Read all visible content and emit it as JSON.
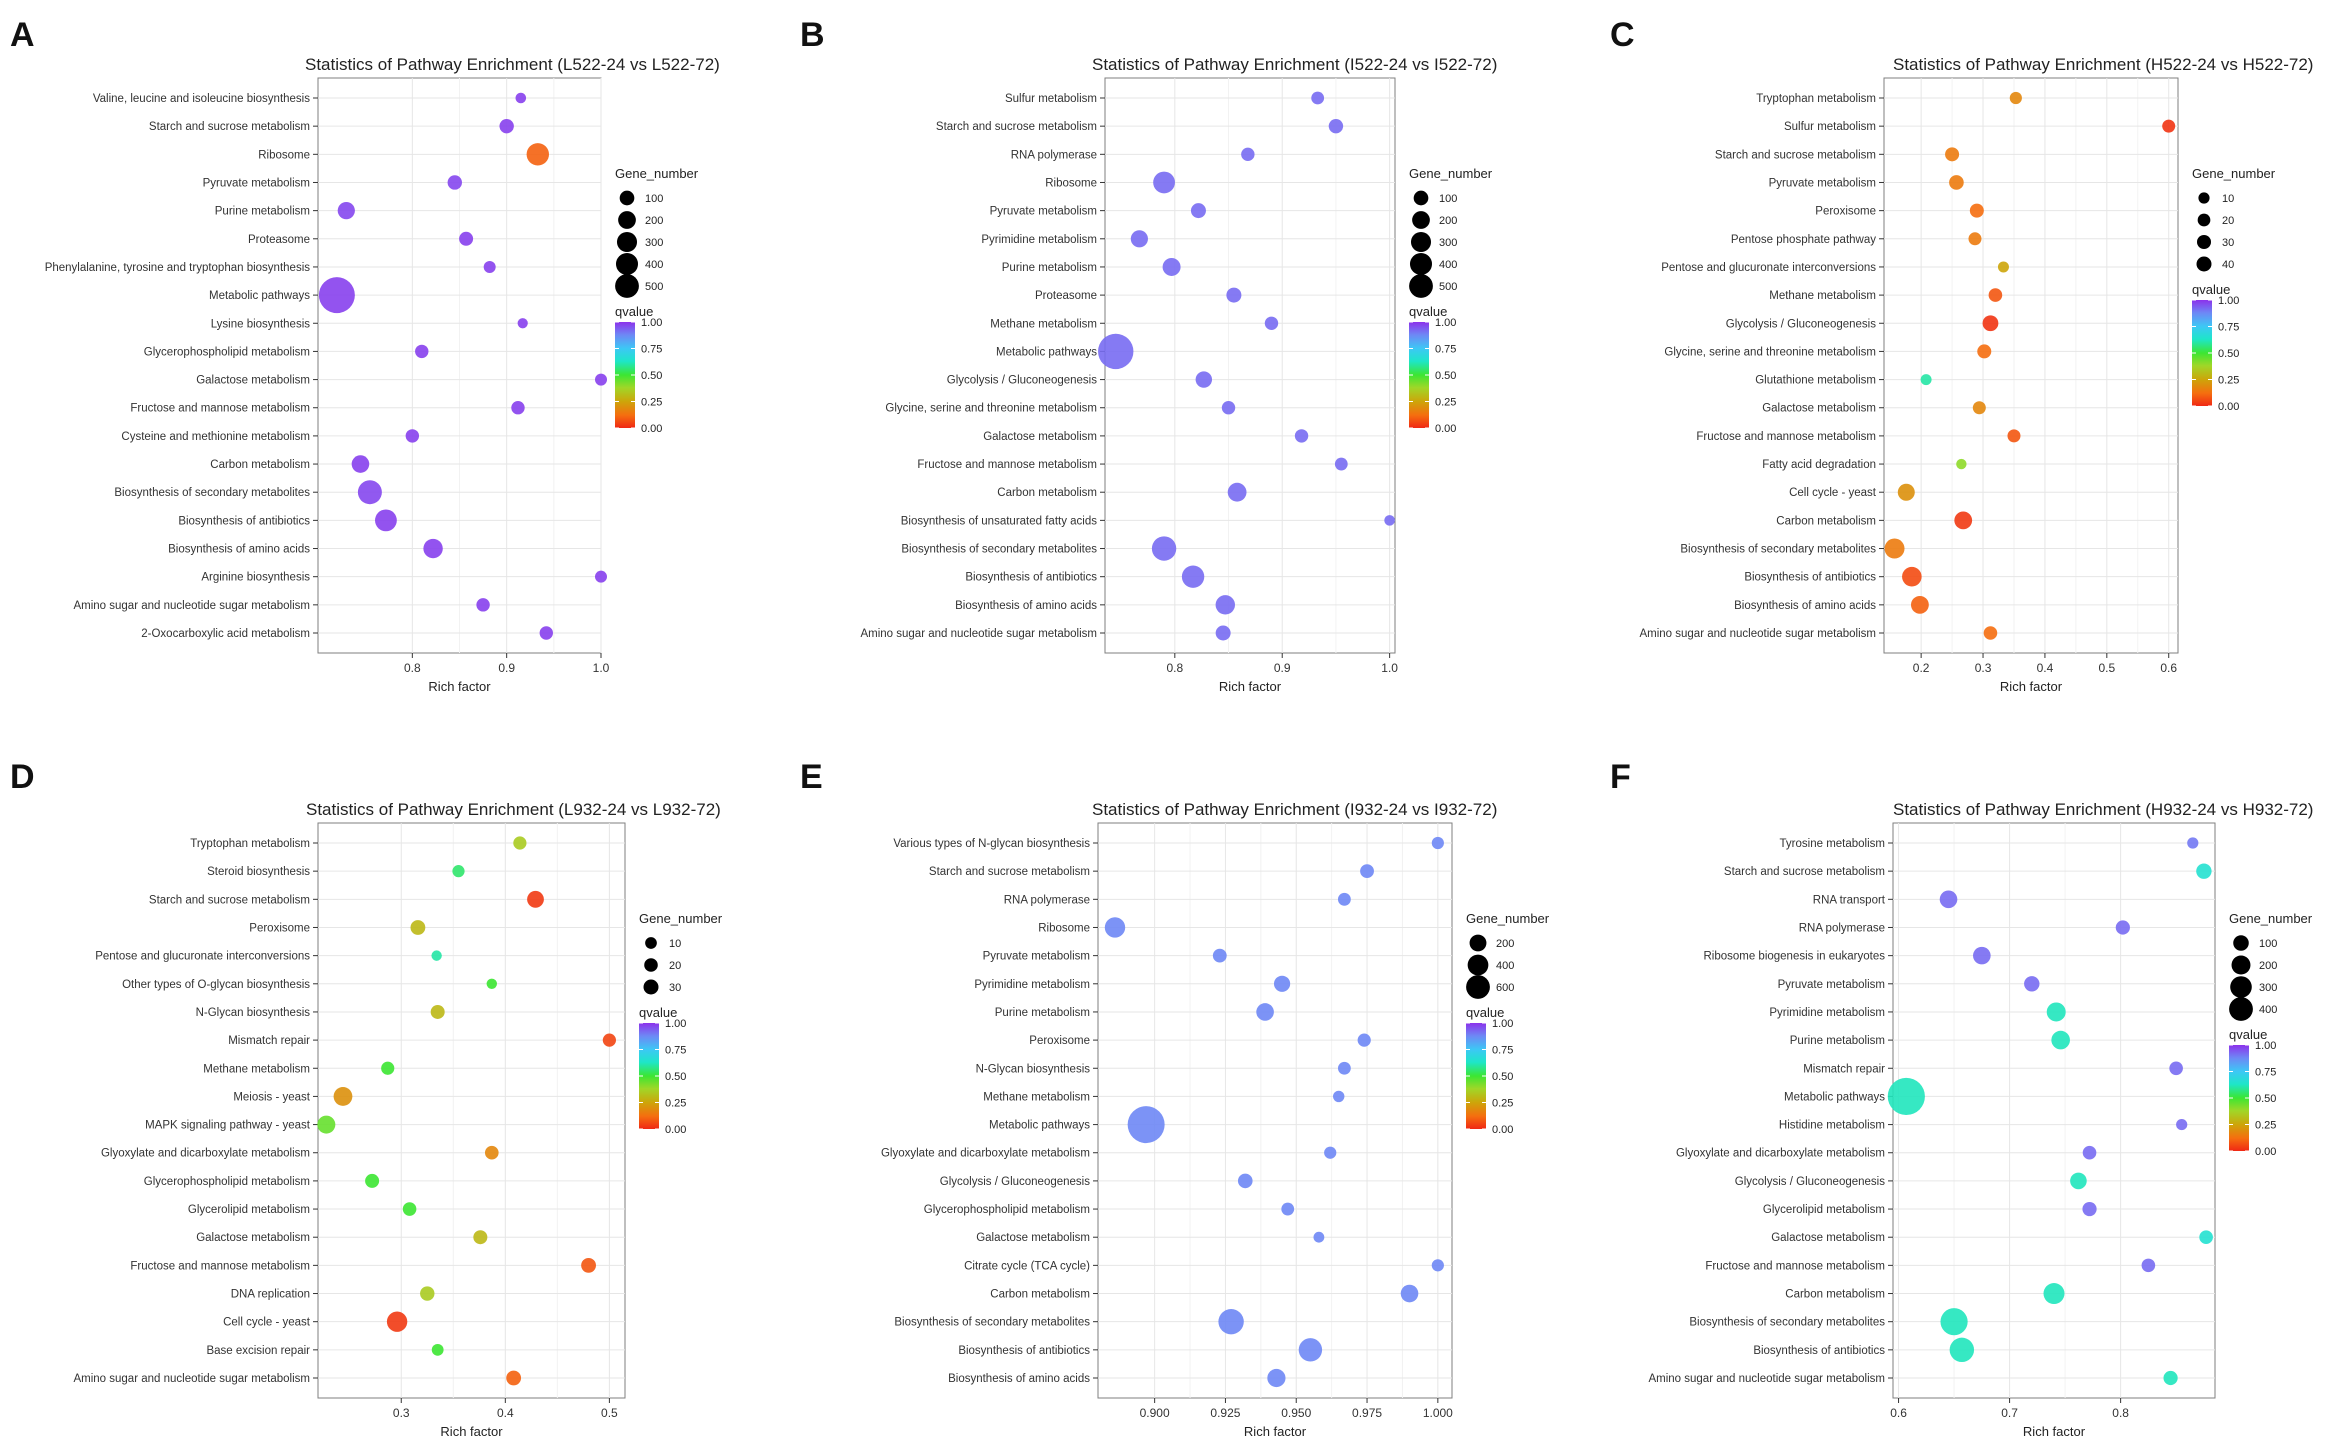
{
  "figure": {
    "legend_size_title": "Gene_number",
    "legend_color_title": "qvalue",
    "qvalue_ticks": [
      "1.00",
      "0.75",
      "0.50",
      "0.25",
      "0.00"
    ]
  },
  "chart_data": [
    {
      "type": "scatter",
      "panel": "A",
      "title": "Statistics of Pathway Enrichment (L522-24 vs L522-72)",
      "xlabel": "Rich factor",
      "ylabel": "",
      "xlim": [
        0.7,
        1.0
      ],
      "xticks": [
        0.8,
        0.9,
        1.0
      ],
      "xtick_labels": [
        "0.8",
        "0.9",
        "1.0"
      ],
      "size_legend": {
        "values": [
          100,
          200,
          300,
          400,
          500
        ],
        "labels": [
          "100",
          "200",
          "300",
          "400",
          "500"
        ]
      },
      "size_range": [
        3,
        18
      ],
      "categories": [
        "Valine, leucine and isoleucine biosynthesis",
        "Starch and sucrose metabolism",
        "Ribosome",
        "Pyruvate metabolism",
        "Purine metabolism",
        "Proteasome",
        "Phenylalanine, tyrosine and tryptophan biosynthesis",
        "Metabolic pathways",
        "Lysine biosynthesis",
        "Glycerophospholipid metabolism",
        "Galactose metabolism",
        "Fructose and mannose metabolism",
        "Cysteine and methionine metabolism",
        "Carbon metabolism",
        "Biosynthesis of secondary metabolites",
        "Biosynthesis of antibiotics",
        "Biosynthesis of amino acids",
        "Arginine biosynthesis",
        "Amino sugar and nucleotide sugar metabolism",
        "2-Oxocarboxylic acid metabolism"
      ],
      "points": [
        {
          "rich": 0.915,
          "genes": 12,
          "q": 0.98
        },
        {
          "rich": 0.9,
          "genes": 40,
          "q": 0.98
        },
        {
          "rich": 0.933,
          "genes": 150,
          "q": 0.1
        },
        {
          "rich": 0.845,
          "genes": 40,
          "q": 0.97
        },
        {
          "rich": 0.73,
          "genes": 70,
          "q": 0.97
        },
        {
          "rich": 0.857,
          "genes": 35,
          "q": 0.98
        },
        {
          "rich": 0.882,
          "genes": 20,
          "q": 0.98
        },
        {
          "rich": 0.72,
          "genes": 500,
          "q": 0.98
        },
        {
          "rich": 0.917,
          "genes": 10,
          "q": 0.98
        },
        {
          "rich": 0.81,
          "genes": 30,
          "q": 0.98
        },
        {
          "rich": 1.0,
          "genes": 20,
          "q": 0.98
        },
        {
          "rich": 0.912,
          "genes": 30,
          "q": 0.98
        },
        {
          "rich": 0.8,
          "genes": 30,
          "q": 0.98
        },
        {
          "rich": 0.745,
          "genes": 75,
          "q": 0.98
        },
        {
          "rich": 0.755,
          "genes": 180,
          "q": 0.97
        },
        {
          "rich": 0.772,
          "genes": 140,
          "q": 0.98
        },
        {
          "rich": 0.822,
          "genes": 100,
          "q": 0.98
        },
        {
          "rich": 1.0,
          "genes": 20,
          "q": 0.98
        },
        {
          "rich": 0.875,
          "genes": 30,
          "q": 0.98
        },
        {
          "rich": 0.942,
          "genes": 30,
          "q": 0.98
        }
      ]
    },
    {
      "type": "scatter",
      "panel": "B",
      "title": "Statistics of Pathway Enrichment (I522-24 vs I522-72)",
      "xlabel": "Rich factor",
      "ylabel": "",
      "xlim": [
        0.735,
        1.005
      ],
      "xticks": [
        0.8,
        0.9,
        1.0
      ],
      "xtick_labels": [
        "0.8",
        "0.9",
        "1.0"
      ],
      "size_legend": {
        "values": [
          100,
          200,
          300,
          400,
          500
        ],
        "labels": [
          "100",
          "200",
          "300",
          "400",
          "500"
        ]
      },
      "size_range": [
        3,
        18
      ],
      "categories": [
        "Sulfur metabolism",
        "Starch and sucrose metabolism",
        "RNA polymerase",
        "Ribosome",
        "Pyruvate metabolism",
        "Pyrimidine metabolism",
        "Purine metabolism",
        "Proteasome",
        "Methane metabolism",
        "Metabolic pathways",
        "Glycolysis / Gluconeogenesis",
        "Glycine, serine and threonine metabolism",
        "Galactose metabolism",
        "Fructose and mannose metabolism",
        "Carbon metabolism",
        "Biosynthesis of unsaturated fatty acids",
        "Biosynthesis of secondary metabolites",
        "Biosynthesis of antibiotics",
        "Biosynthesis of amino acids",
        "Amino sugar and nucleotide sugar metabolism"
      ],
      "points": [
        {
          "rich": 0.933,
          "genes": 25,
          "q": 0.92
        },
        {
          "rich": 0.95,
          "genes": 40,
          "q": 0.92
        },
        {
          "rich": 0.868,
          "genes": 30,
          "q": 0.92
        },
        {
          "rich": 0.79,
          "genes": 140,
          "q": 0.92
        },
        {
          "rich": 0.822,
          "genes": 45,
          "q": 0.92
        },
        {
          "rich": 0.767,
          "genes": 70,
          "q": 0.92
        },
        {
          "rich": 0.797,
          "genes": 80,
          "q": 0.92
        },
        {
          "rich": 0.855,
          "genes": 45,
          "q": 0.92
        },
        {
          "rich": 0.89,
          "genes": 30,
          "q": 0.92
        },
        {
          "rich": 0.745,
          "genes": 480,
          "q": 0.92
        },
        {
          "rich": 0.827,
          "genes": 60,
          "q": 0.92
        },
        {
          "rich": 0.85,
          "genes": 30,
          "q": 0.92
        },
        {
          "rich": 0.918,
          "genes": 30,
          "q": 0.92
        },
        {
          "rich": 0.955,
          "genes": 25,
          "q": 0.92
        },
        {
          "rich": 0.858,
          "genes": 90,
          "q": 0.92
        },
        {
          "rich": 1.0,
          "genes": 12,
          "q": 0.92
        },
        {
          "rich": 0.79,
          "genes": 190,
          "q": 0.92
        },
        {
          "rich": 0.817,
          "genes": 150,
          "q": 0.92
        },
        {
          "rich": 0.847,
          "genes": 100,
          "q": 0.92
        },
        {
          "rich": 0.845,
          "genes": 45,
          "q": 0.92
        }
      ]
    },
    {
      "type": "scatter",
      "panel": "C",
      "title": "Statistics of Pathway Enrichment (H522-24 vs H522-72)",
      "xlabel": "Rich factor",
      "ylabel": "",
      "xlim": [
        0.14,
        0.615
      ],
      "xticks": [
        0.2,
        0.3,
        0.4,
        0.5,
        0.6
      ],
      "xtick_labels": [
        "0.2",
        "0.3",
        "0.4",
        "0.5",
        "0.6"
      ],
      "size_legend": {
        "values": [
          10,
          20,
          30,
          40
        ],
        "labels": [
          "10",
          "20",
          "30",
          "40"
        ]
      },
      "size_range": [
        3,
        10
      ],
      "categories": [
        "Tryptophan metabolism",
        "Sulfur metabolism",
        "Starch and sucrose metabolism",
        "Pyruvate metabolism",
        "Peroxisome",
        "Pentose phosphate pathway",
        "Pentose and glucuronate interconversions",
        "Methane metabolism",
        "Glycolysis / Gluconeogenesis",
        "Glycine, serine and threonine metabolism",
        "Glutathione metabolism",
        "Galactose metabolism",
        "Fructose and mannose metabolism",
        "Fatty acid degradation",
        "Cell cycle - yeast",
        "Carbon metabolism",
        "Biosynthesis of secondary metabolites",
        "Biosynthesis of antibiotics",
        "Biosynthesis of amino acids",
        "Amino sugar and nucleotide sugar metabolism"
      ],
      "points": [
        {
          "rich": 0.353,
          "genes": 8,
          "q": 0.18
        },
        {
          "rich": 0.6,
          "genes": 10,
          "q": 0.02
        },
        {
          "rich": 0.25,
          "genes": 13,
          "q": 0.15
        },
        {
          "rich": 0.257,
          "genes": 15,
          "q": 0.15
        },
        {
          "rich": 0.29,
          "genes": 13,
          "q": 0.12
        },
        {
          "rich": 0.287,
          "genes": 10,
          "q": 0.15
        },
        {
          "rich": 0.333,
          "genes": 5,
          "q": 0.25
        },
        {
          "rich": 0.32,
          "genes": 12,
          "q": 0.08
        },
        {
          "rich": 0.312,
          "genes": 20,
          "q": 0.02
        },
        {
          "rich": 0.302,
          "genes": 13,
          "q": 0.12
        },
        {
          "rich": 0.208,
          "genes": 5,
          "q": 0.6
        },
        {
          "rich": 0.294,
          "genes": 10,
          "q": 0.18
        },
        {
          "rich": 0.35,
          "genes": 10,
          "q": 0.08
        },
        {
          "rich": 0.265,
          "genes": 4,
          "q": 0.4
        },
        {
          "rich": 0.176,
          "genes": 25,
          "q": 0.2
        },
        {
          "rich": 0.268,
          "genes": 28,
          "q": 0.03
        },
        {
          "rich": 0.157,
          "genes": 40,
          "q": 0.15
        },
        {
          "rich": 0.185,
          "genes": 38,
          "q": 0.06
        },
        {
          "rich": 0.198,
          "genes": 28,
          "q": 0.1
        },
        {
          "rich": 0.312,
          "genes": 12,
          "q": 0.12
        }
      ]
    },
    {
      "type": "scatter",
      "panel": "D",
      "title": "Statistics of Pathway Enrichment (L932-24 vs L932-72)",
      "xlabel": "Rich factor",
      "ylabel": "",
      "xlim": [
        0.22,
        0.515
      ],
      "xticks": [
        0.3,
        0.4,
        0.5
      ],
      "xtick_labels": [
        "0.3",
        "0.4",
        "0.5"
      ],
      "size_legend": {
        "values": [
          10,
          20,
          30
        ],
        "labels": [
          "10",
          "20",
          "30"
        ]
      },
      "size_range": [
        3,
        10
      ],
      "categories": [
        "Tryptophan metabolism",
        "Steroid biosynthesis",
        "Starch and sucrose metabolism",
        "Peroxisome",
        "Pentose and glucuronate interconversions",
        "Other types of O-glycan biosynthesis",
        "N-Glycan biosynthesis",
        "Mismatch repair",
        "Methane metabolism",
        "Meiosis - yeast",
        "MAPK signaling pathway - yeast",
        "Glyoxylate and dicarboxylate metabolism",
        "Glycerophospholipid metabolism",
        "Glycerolipid metabolism",
        "Galactose metabolism",
        "Fructose and mannose metabolism",
        "DNA replication",
        "Cell cycle - yeast",
        "Base excision repair",
        "Amino sugar and nucleotide sugar metabolism"
      ],
      "points": [
        {
          "rich": 0.414,
          "genes": 8,
          "q": 0.35
        },
        {
          "rich": 0.355,
          "genes": 6,
          "q": 0.55
        },
        {
          "rich": 0.429,
          "genes": 18,
          "q": 0.03
        },
        {
          "rich": 0.316,
          "genes": 12,
          "q": 0.3
        },
        {
          "rich": 0.334,
          "genes": 3,
          "q": 0.6
        },
        {
          "rich": 0.387,
          "genes": 3,
          "q": 0.5
        },
        {
          "rich": 0.335,
          "genes": 10,
          "q": 0.3
        },
        {
          "rich": 0.5,
          "genes": 8,
          "q": 0.05
        },
        {
          "rich": 0.287,
          "genes": 8,
          "q": 0.5
        },
        {
          "rich": 0.244,
          "genes": 25,
          "q": 0.2
        },
        {
          "rich": 0.228,
          "genes": 22,
          "q": 0.45
        },
        {
          "rich": 0.387,
          "genes": 9,
          "q": 0.18
        },
        {
          "rich": 0.272,
          "genes": 10,
          "q": 0.5
        },
        {
          "rich": 0.308,
          "genes": 9,
          "q": 0.5
        },
        {
          "rich": 0.376,
          "genes": 10,
          "q": 0.3
        },
        {
          "rich": 0.48,
          "genes": 12,
          "q": 0.08
        },
        {
          "rich": 0.325,
          "genes": 11,
          "q": 0.35
        },
        {
          "rich": 0.296,
          "genes": 32,
          "q": 0.03
        },
        {
          "rich": 0.335,
          "genes": 5,
          "q": 0.5
        },
        {
          "rich": 0.408,
          "genes": 12,
          "q": 0.1
        }
      ]
    },
    {
      "type": "scatter",
      "panel": "E",
      "title": "Statistics of Pathway Enrichment (I932-24 vs I932-72)",
      "xlabel": "Rich factor",
      "ylabel": "",
      "xlim": [
        0.88,
        1.005
      ],
      "xticks": [
        0.9,
        0.925,
        0.95,
        0.975,
        1.0
      ],
      "xtick_labels": [
        "0.900",
        "0.925",
        "0.950",
        "0.975",
        "1.000"
      ],
      "size_legend": {
        "values": [
          200,
          400,
          600
        ],
        "labels": [
          "200",
          "400",
          "600"
        ]
      },
      "size_range": [
        3,
        18
      ],
      "categories": [
        "Various types of N-glycan biosynthesis",
        "Starch and sucrose metabolism",
        "RNA polymerase",
        "Ribosome",
        "Pyruvate metabolism",
        "Pyrimidine metabolism",
        "Purine metabolism",
        "Peroxisome",
        "N-Glycan biosynthesis",
        "Methane metabolism",
        "Metabolic pathways",
        "Glyoxylate and dicarboxylate metabolism",
        "Glycolysis / Gluconeogenesis",
        "Glycerophospholipid metabolism",
        "Galactose metabolism",
        "Citrate cycle (TCA cycle)",
        "Carbon metabolism",
        "Biosynthesis of secondary metabolites",
        "Biosynthesis of antibiotics",
        "Biosynthesis of amino acids"
      ],
      "points": [
        {
          "rich": 1.0,
          "genes": 25,
          "q": 0.88
        },
        {
          "rich": 0.975,
          "genes": 40,
          "q": 0.88
        },
        {
          "rich": 0.967,
          "genes": 30,
          "q": 0.88
        },
        {
          "rich": 0.886,
          "genes": 140,
          "q": 0.88
        },
        {
          "rich": 0.923,
          "genes": 40,
          "q": 0.88
        },
        {
          "rich": 0.945,
          "genes": 70,
          "q": 0.88
        },
        {
          "rich": 0.939,
          "genes": 90,
          "q": 0.88
        },
        {
          "rich": 0.974,
          "genes": 35,
          "q": 0.88
        },
        {
          "rich": 0.967,
          "genes": 30,
          "q": 0.88
        },
        {
          "rich": 0.965,
          "genes": 20,
          "q": 0.88
        },
        {
          "rich": 0.897,
          "genes": 640,
          "q": 0.88
        },
        {
          "rich": 0.962,
          "genes": 25,
          "q": 0.88
        },
        {
          "rich": 0.932,
          "genes": 50,
          "q": 0.88
        },
        {
          "rich": 0.947,
          "genes": 30,
          "q": 0.88
        },
        {
          "rich": 0.958,
          "genes": 15,
          "q": 0.88
        },
        {
          "rich": 1.0,
          "genes": 25,
          "q": 0.88
        },
        {
          "rich": 0.99,
          "genes": 90,
          "q": 0.88
        },
        {
          "rich": 0.927,
          "genes": 250,
          "q": 0.88
        },
        {
          "rich": 0.955,
          "genes": 200,
          "q": 0.88
        },
        {
          "rich": 0.943,
          "genes": 100,
          "q": 0.88
        }
      ]
    },
    {
      "type": "scatter",
      "panel": "F",
      "title": "Statistics of Pathway Enrichment (H932-24 vs H932-72)",
      "xlabel": "Rich factor",
      "ylabel": "",
      "xlim": [
        0.595,
        0.885
      ],
      "xticks": [
        0.6,
        0.7,
        0.8
      ],
      "xtick_labels": [
        "0.6",
        "0.7",
        "0.8"
      ],
      "size_legend": {
        "values": [
          100,
          200,
          300,
          400
        ],
        "labels": [
          "100",
          "200",
          "300",
          "400"
        ]
      },
      "size_range": [
        3,
        18
      ],
      "categories": [
        "Tyrosine metabolism",
        "Starch and sucrose metabolism",
        "RNA transport",
        "RNA polymerase",
        "Ribosome biogenesis in eukaryotes",
        "Pyruvate metabolism",
        "Pyrimidine metabolism",
        "Purine metabolism",
        "Mismatch repair",
        "Metabolic pathways",
        "Histidine metabolism",
        "Glyoxylate and dicarboxylate metabolism",
        "Glycolysis / Gluconeogenesis",
        "Glycerolipid metabolism",
        "Galactose metabolism",
        "Fructose and mannose metabolism",
        "Carbon metabolism",
        "Biosynthesis of secondary metabolites",
        "Biosynthesis of antibiotics",
        "Amino sugar and nucleotide sugar metabolism"
      ],
      "points": [
        {
          "rich": 0.865,
          "genes": 12,
          "q": 0.9
        },
        {
          "rich": 0.875,
          "genes": 40,
          "q": 0.65
        },
        {
          "rich": 0.645,
          "genes": 60,
          "q": 0.92
        },
        {
          "rich": 0.802,
          "genes": 30,
          "q": 0.92
        },
        {
          "rich": 0.675,
          "genes": 60,
          "q": 0.92
        },
        {
          "rich": 0.72,
          "genes": 40,
          "q": 0.92
        },
        {
          "rich": 0.742,
          "genes": 75,
          "q": 0.62
        },
        {
          "rich": 0.746,
          "genes": 70,
          "q": 0.62
        },
        {
          "rich": 0.85,
          "genes": 25,
          "q": 0.92
        },
        {
          "rich": 0.607,
          "genes": 430,
          "q": 0.62
        },
        {
          "rich": 0.855,
          "genes": 12,
          "q": 0.92
        },
        {
          "rich": 0.772,
          "genes": 25,
          "q": 0.92
        },
        {
          "rich": 0.762,
          "genes": 50,
          "q": 0.62
        },
        {
          "rich": 0.772,
          "genes": 30,
          "q": 0.92
        },
        {
          "rich": 0.877,
          "genes": 25,
          "q": 0.65
        },
        {
          "rich": 0.825,
          "genes": 25,
          "q": 0.92
        },
        {
          "rich": 0.74,
          "genes": 100,
          "q": 0.62
        },
        {
          "rich": 0.65,
          "genes": 200,
          "q": 0.62
        },
        {
          "rich": 0.657,
          "genes": 150,
          "q": 0.62
        },
        {
          "rich": 0.845,
          "genes": 30,
          "q": 0.62
        }
      ]
    }
  ]
}
